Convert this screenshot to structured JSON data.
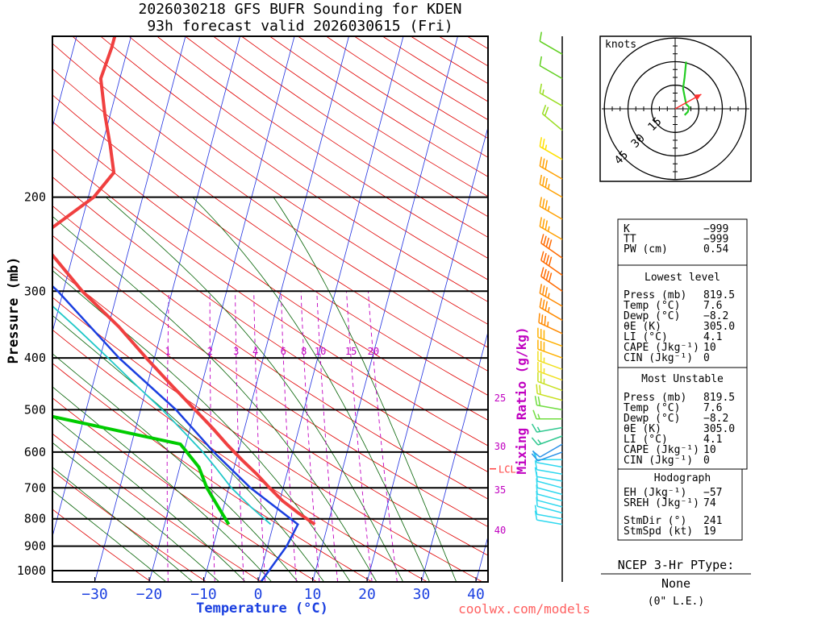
{
  "title_line1": "2026030218 GFS BUFR Sounding for KDEN",
  "title_line2": "93h forecast valid 2026030615 (Fri)",
  "watermark": "coolwx.com/models",
  "colors": {
    "temperature": "#f04040",
    "dewpoint": "#00cc00",
    "parcel": "#1a3fe0",
    "wetbulb": "#20c8c8",
    "isotherm": "#2030e0",
    "dry_adiabat": "#e00000",
    "moist_adiabat": "#006000",
    "mixing_ratio": "#c000c0",
    "axis_label": "#1a3fe0",
    "lcl": "#ff4040"
  },
  "chart_data": {
    "type": "line",
    "subtype": "skew-t log-p sounding",
    "xlabel": "Temperature (°C)",
    "ylabel": "Pressure (mb)",
    "right_label": "Mixing Ratio (g/kg)",
    "xlim": [
      -40,
      40
    ],
    "ylim_mb": [
      1050,
      100
    ],
    "x_ticks": [
      -30,
      -20,
      -10,
      0,
      10,
      20,
      30,
      40
    ],
    "x_tick_labels": [
      "−30",
      "−20",
      "−10",
      "0",
      "10",
      "20",
      "30",
      "40"
    ],
    "pressure_levels": [
      200,
      300,
      400,
      500,
      600,
      700,
      800,
      900,
      1000
    ],
    "isotherm_start_deg": -110,
    "isotherm_end_deg": 40,
    "isotherm_step": 10,
    "dry_adiabats_k": [
      250,
      260,
      270,
      280,
      290,
      300,
      310,
      320,
      330,
      340,
      350,
      360,
      370,
      380,
      390,
      400,
      410,
      420,
      430,
      440,
      450,
      460,
      470,
      480,
      490,
      500,
      510,
      520,
      530,
      540,
      550,
      560,
      570,
      580,
      590,
      600
    ],
    "moist_adiabats_c": [
      -20,
      -15,
      -10,
      -5,
      0,
      5,
      10,
      15,
      20,
      25,
      30,
      35
    ],
    "mixing_ratio_lines": [
      1,
      2,
      3,
      4,
      6,
      8,
      10,
      15,
      20
    ],
    "mixing_ratio_labels": [
      "1",
      "2",
      "3",
      "4",
      "6",
      "8",
      "10",
      "15",
      "20"
    ],
    "theta_e_labels": [
      "25",
      "30",
      "35",
      "40"
    ],
    "lcl_label": "LCL",
    "lcl_pressure": 645,
    "temperature_profile": [
      {
        "p": 819.5,
        "t": 7.6
      },
      {
        "p": 780,
        "t": 4.0
      },
      {
        "p": 740,
        "t": 0.5
      },
      {
        "p": 700,
        "t": -2.5
      },
      {
        "p": 660,
        "t": -5.5
      },
      {
        "p": 620,
        "t": -9.0
      },
      {
        "p": 580,
        "t": -12.5
      },
      {
        "p": 540,
        "t": -16.0
      },
      {
        "p": 500,
        "t": -20.0
      },
      {
        "p": 450,
        "t": -25.5
      },
      {
        "p": 400,
        "t": -31.5
      },
      {
        "p": 350,
        "t": -38.0
      },
      {
        "p": 300,
        "t": -46.5
      },
      {
        "p": 250,
        "t": -55.0
      },
      {
        "p": 230,
        "t": -55.5
      },
      {
        "p": 200,
        "t": -49.0
      },
      {
        "p": 180,
        "t": -46.5
      },
      {
        "p": 160,
        "t": -48.5
      },
      {
        "p": 140,
        "t": -51.0
      },
      {
        "p": 120,
        "t": -53.5
      },
      {
        "p": 105,
        "t": -53.0
      },
      {
        "p": 100,
        "t": -53.0
      }
    ],
    "dewpoint_profile": [
      {
        "p": 819.5,
        "t": -8.2
      },
      {
        "p": 760,
        "t": -11.0
      },
      {
        "p": 700,
        "t": -14.0
      },
      {
        "p": 640,
        "t": -16.5
      },
      {
        "p": 580,
        "t": -21.0
      },
      {
        "p": 500,
        "t": -52.0
      },
      {
        "p": 460,
        "t": -58.0
      },
      {
        "p": 430,
        "t": -60.0
      },
      {
        "p": 410,
        "t": -59.0
      },
      {
        "p": 385,
        "t": -63.0
      },
      {
        "p": 320,
        "t": -66.0
      },
      {
        "p": 250,
        "t": -71.0
      }
    ],
    "wetbulb_profile": [
      {
        "p": 819.5,
        "t": -0.5
      },
      {
        "p": 760,
        "t": -5.0
      },
      {
        "p": 700,
        "t": -9.5
      },
      {
        "p": 640,
        "t": -13.5
      },
      {
        "p": 600,
        "t": -16.5
      },
      {
        "p": 550,
        "t": -21.0
      },
      {
        "p": 500,
        "t": -26.0
      },
      {
        "p": 450,
        "t": -32.0
      },
      {
        "p": 400,
        "t": -38.5
      },
      {
        "p": 350,
        "t": -46.0
      },
      {
        "p": 300,
        "t": -55.0
      },
      {
        "p": 250,
        "t": -63.0
      },
      {
        "p": 200,
        "t": -72.5
      },
      {
        "p": 150,
        "t": -82.0
      },
      {
        "p": 125,
        "t": -87.0
      }
    ],
    "parcel_profile": [
      {
        "p": 1050,
        "t": 0.5
      },
      {
        "p": 900,
        "t": 3.5
      },
      {
        "p": 819.5,
        "t": 4.5
      },
      {
        "p": 700,
        "t": -6.0
      },
      {
        "p": 600,
        "t": -14.5
      },
      {
        "p": 500,
        "t": -23.5
      },
      {
        "p": 400,
        "t": -36.5
      },
      {
        "p": 300,
        "t": -51.0
      },
      {
        "p": 270,
        "t": -57.0
      }
    ],
    "wind_profile": [
      {
        "p": 819.5,
        "dir": 280,
        "spd": 10
      },
      {
        "p": 800,
        "dir": 280,
        "spd": 10
      },
      {
        "p": 780,
        "dir": 285,
        "spd": 10
      },
      {
        "p": 760,
        "dir": 285,
        "spd": 10
      },
      {
        "p": 740,
        "dir": 285,
        "spd": 10
      },
      {
        "p": 720,
        "dir": 285,
        "spd": 10
      },
      {
        "p": 700,
        "dir": 285,
        "spd": 10
      },
      {
        "p": 680,
        "dir": 280,
        "spd": 10
      },
      {
        "p": 660,
        "dir": 280,
        "spd": 10
      },
      {
        "p": 640,
        "dir": 280,
        "spd": 10
      },
      {
        "p": 620,
        "dir": 270,
        "spd": 10
      },
      {
        "p": 600,
        "dir": 250,
        "spd": 10
      },
      {
        "p": 580,
        "dir": 240,
        "spd": 10
      },
      {
        "p": 560,
        "dir": 250,
        "spd": 15
      },
      {
        "p": 540,
        "dir": 260,
        "spd": 15
      },
      {
        "p": 520,
        "dir": 270,
        "spd": 15
      },
      {
        "p": 500,
        "dir": 280,
        "spd": 20
      },
      {
        "p": 480,
        "dir": 285,
        "spd": 20
      },
      {
        "p": 460,
        "dir": 290,
        "spd": 25
      },
      {
        "p": 440,
        "dir": 290,
        "spd": 25
      },
      {
        "p": 420,
        "dir": 290,
        "spd": 25
      },
      {
        "p": 400,
        "dir": 290,
        "spd": 30
      },
      {
        "p": 380,
        "dir": 290,
        "spd": 30
      },
      {
        "p": 360,
        "dir": 295,
        "spd": 35
      },
      {
        "p": 340,
        "dir": 300,
        "spd": 35
      },
      {
        "p": 320,
        "dir": 300,
        "spd": 35
      },
      {
        "p": 300,
        "dir": 305,
        "spd": 40
      },
      {
        "p": 280,
        "dir": 305,
        "spd": 40
      },
      {
        "p": 260,
        "dir": 305,
        "spd": 40
      },
      {
        "p": 240,
        "dir": 300,
        "spd": 35
      },
      {
        "p": 220,
        "dir": 300,
        "spd": 35
      },
      {
        "p": 200,
        "dir": 300,
        "spd": 35
      },
      {
        "p": 185,
        "dir": 300,
        "spd": 30
      },
      {
        "p": 170,
        "dir": 300,
        "spd": 25
      },
      {
        "p": 150,
        "dir": 310,
        "spd": 20
      },
      {
        "p": 135,
        "dir": 300,
        "spd": 15
      },
      {
        "p": 120,
        "dir": 300,
        "spd": 10
      },
      {
        "p": 108,
        "dir": 300,
        "spd": 10
      }
    ],
    "hodograph": {
      "units_label": "knots",
      "ring_labels": [
        "15",
        "30",
        "45"
      ],
      "rings_kt": [
        15,
        30,
        45
      ],
      "storm_motion": {
        "dir": 241,
        "spd": 19
      },
      "points": [
        {
          "u": 6,
          "v": -4
        },
        {
          "u": 8,
          "v": -2
        },
        {
          "u": 9,
          "v": 1
        },
        {
          "u": 7,
          "v": 3
        },
        {
          "u": 6,
          "v": 8
        },
        {
          "u": 5,
          "v": 13
        },
        {
          "u": 6,
          "v": 20
        },
        {
          "u": 7,
          "v": 30
        }
      ]
    }
  },
  "stats": {
    "indices": [
      {
        "label": "K",
        "value": "−999"
      },
      {
        "label": "TT",
        "value": "−999"
      },
      {
        "label": "PW (cm)",
        "value": "0.54"
      }
    ],
    "lowest": {
      "title": "Lowest level",
      "rows": [
        {
          "label": "Press (mb)",
          "value": "819.5"
        },
        {
          "label": "Temp (°C)",
          "value": "7.6"
        },
        {
          "label": "Dewp (°C)",
          "value": "−8.2"
        },
        {
          "label": "θE (K)",
          "value": "305.0"
        },
        {
          "label": "LI (°C)",
          "value": "4.1"
        },
        {
          "label": "CAPE (Jkg⁻¹)",
          "value": "10"
        },
        {
          "label": "CIN (Jkg⁻¹)",
          "value": "0"
        }
      ]
    },
    "unstable": {
      "title": "Most Unstable",
      "rows": [
        {
          "label": "Press (mb)",
          "value": "819.5"
        },
        {
          "label": "Temp (°C)",
          "value": "7.6"
        },
        {
          "label": "Dewp (°C)",
          "value": "−8.2"
        },
        {
          "label": "θE (K)",
          "value": "305.0"
        },
        {
          "label": "LI (°C)",
          "value": "4.1"
        },
        {
          "label": "CAPE (Jkg⁻¹)",
          "value": "10"
        },
        {
          "label": "CIN (Jkg⁻¹)",
          "value": "0"
        }
      ]
    },
    "hodo": {
      "title": "Hodograph",
      "rows": [
        {
          "label": "EH (Jkg⁻¹)",
          "value": "−57"
        },
        {
          "label": "SREH (Jkg⁻¹)",
          "value": "74"
        },
        {
          "label": "StmDir (°)",
          "value": "241"
        },
        {
          "label": "StmSpd (kt)",
          "value": "19"
        }
      ]
    }
  },
  "ptype": {
    "title": "NCEP 3-Hr PType:",
    "value": "None",
    "note": "(0\" L.E.)"
  }
}
